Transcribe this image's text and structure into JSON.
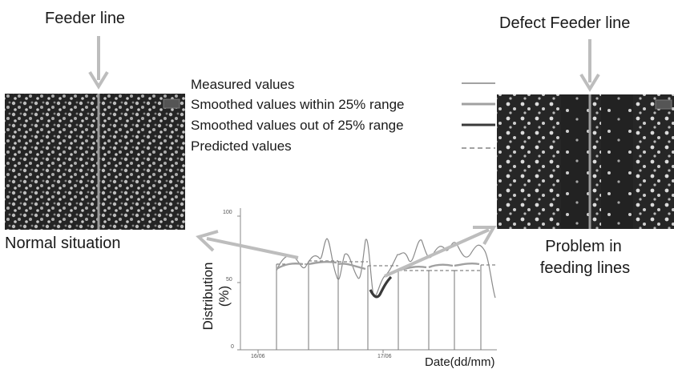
{
  "left_panel": {
    "top_label": "Feeder line",
    "bottom_label": "Normal situation"
  },
  "right_panel": {
    "top_label": "Defect Feeder line",
    "bottom_label_line1": "Problem in",
    "bottom_label_line2": "feeding lines"
  },
  "legend": {
    "items": [
      {
        "label": "Measured values",
        "style": "thin-solid"
      },
      {
        "label": "Smoothed values within 25% range",
        "style": "thick-solid-gray"
      },
      {
        "label": "Smoothed values out of 25% range",
        "style": "thick-solid-dark"
      },
      {
        "label": "Predicted values",
        "style": "dashed"
      }
    ]
  },
  "chart": {
    "ylabel_line1": "Distribution",
    "ylabel_line2": "(%)",
    "xlabel": "Date(dd/mm)",
    "y_ticks": [
      "100",
      "50",
      "0"
    ],
    "x_ticks": [
      "16/06",
      "17/06"
    ]
  },
  "colors": {
    "arrow": "#bdbdbd",
    "divider": "#9a9a9a",
    "photo_bg": "#2a2a2a",
    "measured": "#6a6a6a",
    "smoothed_in": "#a0a0a0",
    "smoothed_out": "#3a3a3a"
  }
}
